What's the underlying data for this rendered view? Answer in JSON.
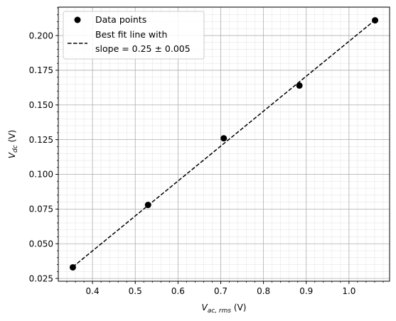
{
  "chart_data": {
    "type": "scatter",
    "xlabel": {
      "main": "V",
      "sub": "ac, rms",
      "unit": " (V)"
    },
    "ylabel": {
      "main": "V",
      "sub": "dc",
      "unit": " (V)"
    },
    "xlim": [
      0.32,
      1.095
    ],
    "ylim": [
      0.023,
      0.2205
    ],
    "x_ticks": [
      0.4,
      0.5,
      0.6,
      0.7,
      0.8,
      0.9,
      1.0
    ],
    "x_tick_labels": [
      "0.4",
      "0.5",
      "0.6",
      "0.7",
      "0.8",
      "0.9",
      "1.0"
    ],
    "y_ticks": [
      0.025,
      0.05,
      0.075,
      0.1,
      0.125,
      0.15,
      0.175,
      0.2
    ],
    "y_tick_labels": [
      "0.025",
      "0.050",
      "0.075",
      "0.100",
      "0.125",
      "0.150",
      "0.175",
      "0.200"
    ],
    "grid": true,
    "minor_grid": true,
    "legend_position": "top-left",
    "series": [
      {
        "name": "Data points",
        "kind": "scatter",
        "color": "#000000",
        "x": [
          0.354,
          0.53,
          0.707,
          0.884,
          1.061
        ],
        "y": [
          0.033,
          0.078,
          0.126,
          0.164,
          0.211
        ]
      },
      {
        "name": "Best fit line with",
        "name_line2": "slope = 0.25 ± 0.005",
        "kind": "line",
        "style": "dashed",
        "color": "#000000",
        "x": [
          0.354,
          1.061
        ],
        "y": [
          0.0333,
          0.2112
        ]
      }
    ]
  }
}
